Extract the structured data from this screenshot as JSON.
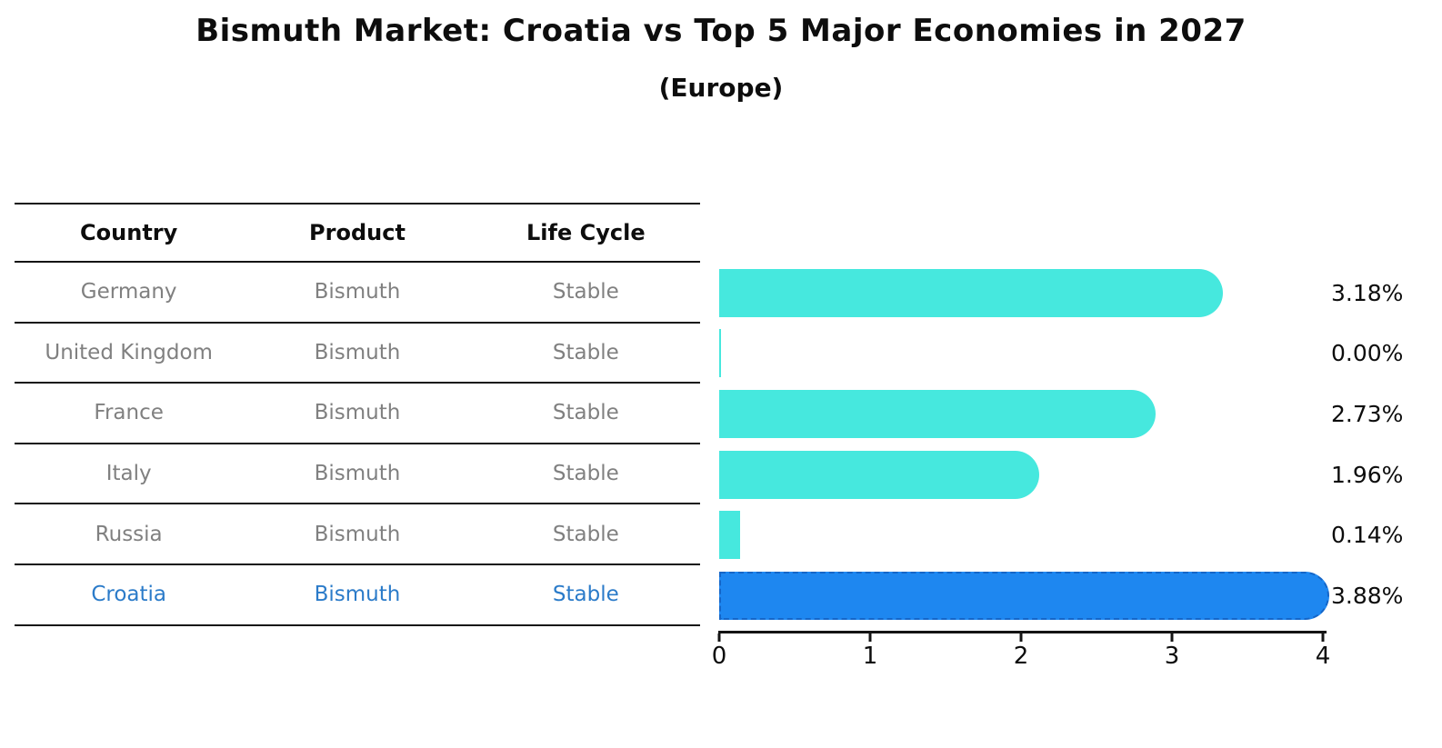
{
  "title": "Bismuth Market: Croatia vs Top 5 Major Economies in 2027",
  "subtitle": "(Europe)",
  "table": {
    "headers": [
      "Country",
      "Product",
      "Life Cycle"
    ],
    "rows": [
      {
        "country": "Germany",
        "product": "Bismuth",
        "life_cycle": "Stable",
        "highlighted": false
      },
      {
        "country": "United Kingdom",
        "product": "Bismuth",
        "life_cycle": "Stable",
        "highlighted": false
      },
      {
        "country": "France",
        "product": "Bismuth",
        "life_cycle": "Stable",
        "highlighted": false
      },
      {
        "country": "Italy",
        "product": "Bismuth",
        "life_cycle": "Stable",
        "highlighted": false
      },
      {
        "country": "Russia",
        "product": "Bismuth",
        "life_cycle": "Stable",
        "highlighted": false
      },
      {
        "country": "Croatia",
        "product": "Bismuth",
        "life_cycle": "Stable",
        "highlighted": true
      }
    ]
  },
  "chart_data": {
    "type": "bar",
    "orientation": "horizontal",
    "title": "Bismuth Market: Croatia vs Top 5 Major Economies in 2027",
    "subtitle": "(Europe)",
    "categories": [
      "Germany",
      "United Kingdom",
      "France",
      "Italy",
      "Russia",
      "Croatia"
    ],
    "values": [
      3.18,
      0.0,
      2.73,
      1.96,
      0.14,
      3.88
    ],
    "value_labels": [
      "3.18%",
      "0.00%",
      "2.73%",
      "1.96%",
      "0.14%",
      "3.88%"
    ],
    "x_ticks": [
      "0",
      "1",
      "2",
      "3",
      "4"
    ],
    "xlim": [
      0,
      4
    ],
    "grid": false,
    "legend": false,
    "highlight_index": 5,
    "bar_color": "#46e8de",
    "highlight_color": "#1e87f0",
    "highlight_border_color": "#1566c8"
  },
  "colors": {
    "muted_text": "#808080",
    "highlight_text": "#2b7bc9",
    "axis_text": "#0d0d0d"
  }
}
